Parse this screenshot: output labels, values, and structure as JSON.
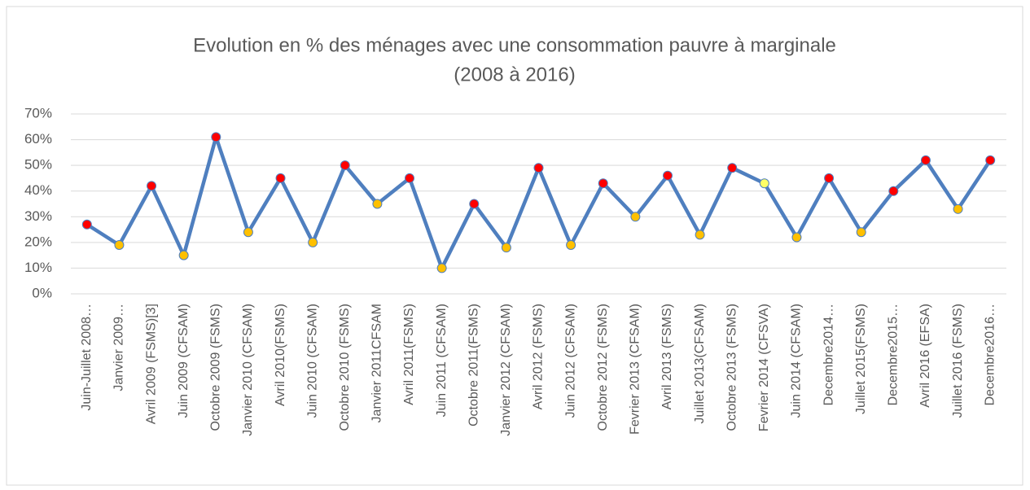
{
  "chart_data": {
    "type": "line",
    "title": "Evolution en % des ménages avec une consommation pauvre à marginale",
    "subtitle": "(2008 à 2016)",
    "categories": [
      "Juin-Juillet 2008…",
      "Janvier 2009…",
      "Avril 2009 (FSMS)[3]",
      "Juin 2009 (CFSAM)",
      "Octobre 2009 (FSMS)",
      "Janvier 2010 (CFSAM)",
      "Avril 2010(FSMS)",
      "Juin 2010 (CFSAM)",
      "Octobre 2010 (FSMS)",
      "Janvier 2011CFSAM",
      "Avril 2011(FSMS)",
      "Juin 2011 (CFSAM)",
      "Octobre 2011(FSMS)",
      "Janvier 2012 (CFSAM)",
      "Avril 2012 (FSMS)",
      "Juin 2012 (CFSAM)",
      "Octobre 2012 (FSMS)",
      "Fevrier 2013 (CFSAM)",
      "Avril 2013 (FSMS)",
      "Juillet 2013(CFSAM)",
      "Octobre 2013 (FSMS)",
      "Fevrier 2014 (CFSVA)",
      "Juin 2014 (CFSAM)",
      "Decembre2014…",
      "Juillet 2015(FSMS)",
      "Decembre2015…",
      "Avril 2016 (EFSA)",
      "Juillet 2016 (FSMS)",
      "Decembre2016…"
    ],
    "values": [
      27,
      19,
      42,
      15,
      61,
      24,
      45,
      20,
      50,
      35,
      45,
      10,
      35,
      18,
      49,
      19,
      43,
      30,
      46,
      23,
      49,
      43,
      22,
      45,
      24,
      40,
      52,
      33,
      52
    ],
    "color": "#4f7fbf",
    "marker_colors": [
      "#ff0000",
      "#ffc000",
      "#ff0000",
      "#ffc000",
      "#ff0000",
      "#ffc000",
      "#ff0000",
      "#ffc000",
      "#ff0000",
      "#ffc000",
      "#ff0000",
      "#ffc000",
      "#ff0000",
      "#ffc000",
      "#ff0000",
      "#ffc000",
      "#ff0000",
      "#ffc000",
      "#ff0000",
      "#ffc000",
      "#ff0000",
      "#ffff66",
      "#ffc000",
      "#ff0000",
      "#ffc000",
      "#ff0000",
      "#ff0000",
      "#ffc000",
      "#ff0000"
    ],
    "ylim": [
      0,
      70
    ],
    "yticks": [
      {
        "value": 0,
        "label": "0%"
      },
      {
        "value": 10,
        "label": "10%"
      },
      {
        "value": 20,
        "label": "20%"
      },
      {
        "value": 30,
        "label": "30%"
      },
      {
        "value": 40,
        "label": "40%"
      },
      {
        "value": 50,
        "label": "50%"
      },
      {
        "value": 60,
        "label": "60%"
      },
      {
        "value": 70,
        "label": "70%"
      }
    ],
    "grid": true
  }
}
